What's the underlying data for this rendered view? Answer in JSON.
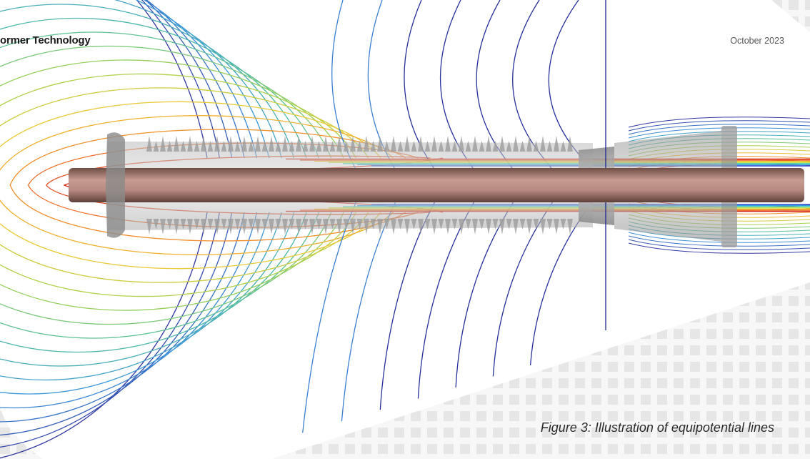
{
  "header": {
    "doc_title": "ormer Technology",
    "date": "October 2023"
  },
  "figure": {
    "caption": "Figure 3: Illustration of equipotential lines"
  },
  "colors": {
    "background": "#e6e6e6",
    "sheet": "#ffffff",
    "contour_outer": "#3b3fa0",
    "contour_inner": "#d62a1a"
  }
}
